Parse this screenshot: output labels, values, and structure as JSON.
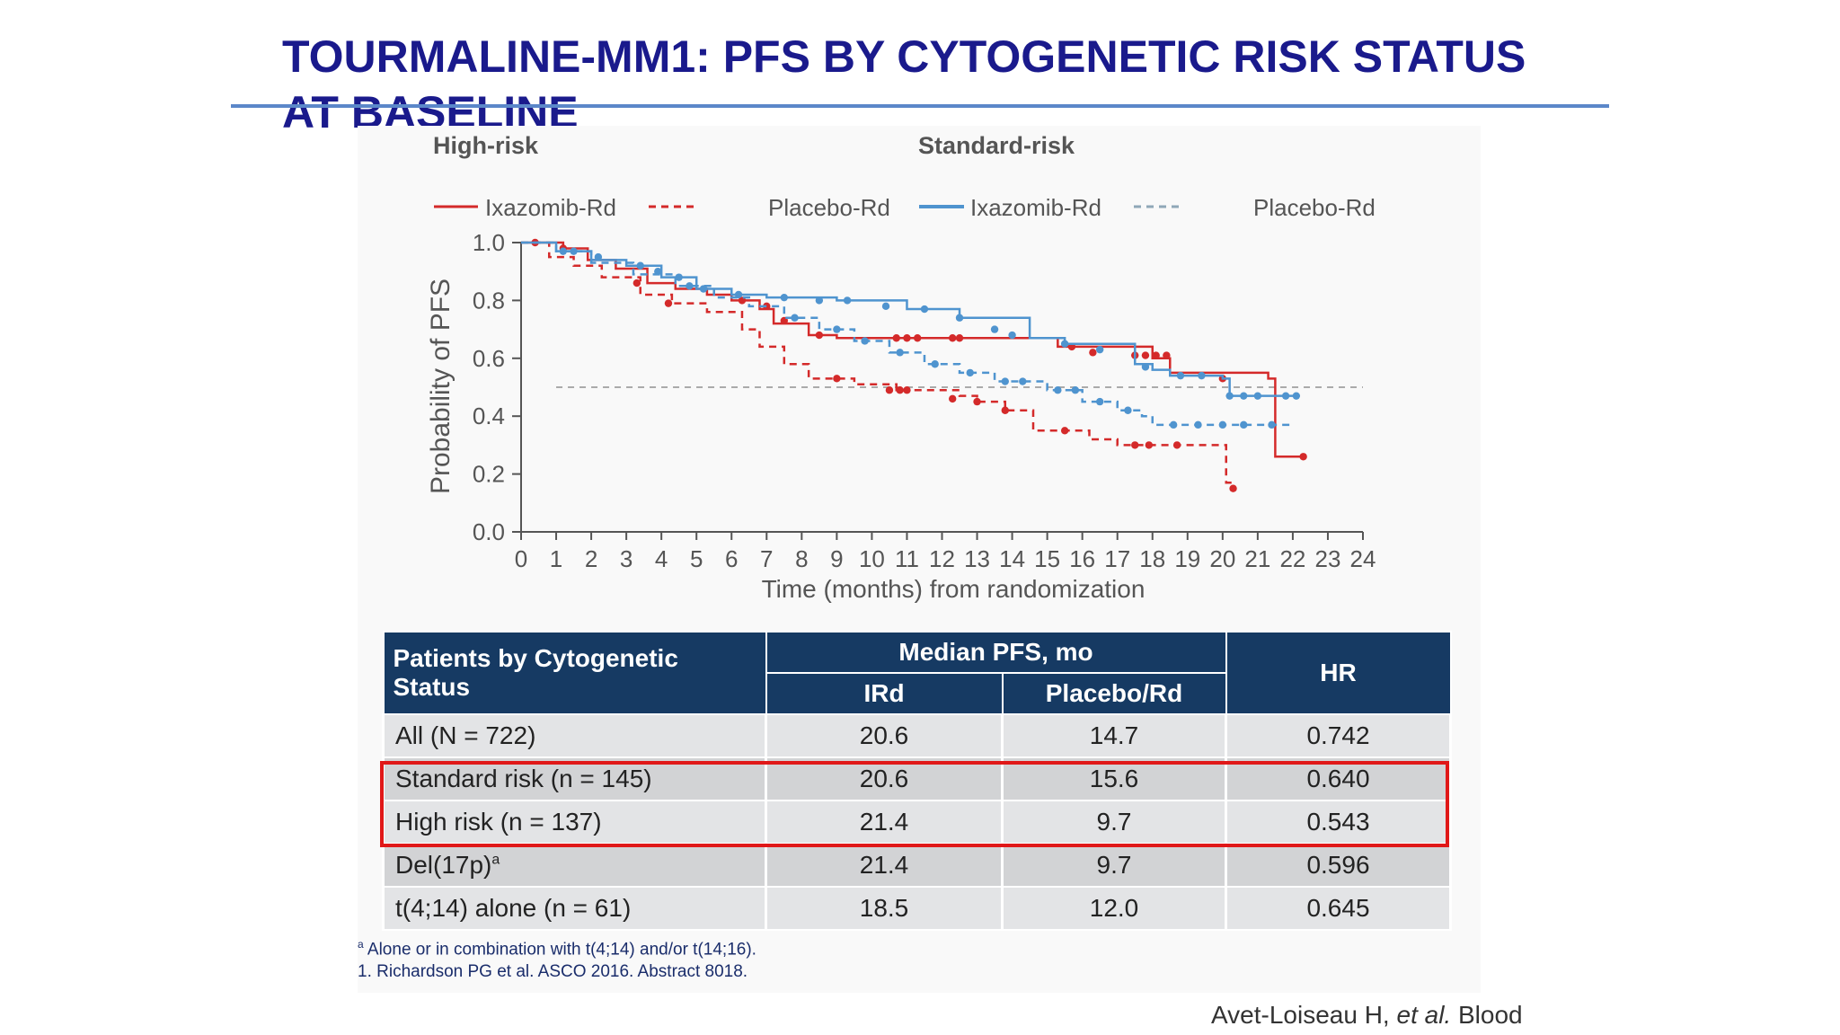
{
  "title": {
    "bold": "TOURMALINE-MM1",
    "rest": ": PFS BY CYTOGENETIC RISK STATUS AT BASELINE"
  },
  "colors": {
    "high_risk": "#d42a2a",
    "standard_risk": "#4f94cf",
    "median_line": "#aaaaaa",
    "table_header": "#163a63",
    "highlight": "#e01818"
  },
  "chart_data": {
    "type": "line",
    "subtitle_left": "High-risk",
    "subtitle_right": "Standard-risk",
    "xlabel": "Time (months) from randomization",
    "ylabel": "Probability of PFS",
    "xlim": [
      0,
      24
    ],
    "ylim": [
      0,
      1
    ],
    "xticks": [
      0,
      1,
      2,
      3,
      4,
      5,
      6,
      7,
      8,
      9,
      10,
      11,
      12,
      13,
      14,
      15,
      16,
      17,
      18,
      19,
      20,
      21,
      22,
      23,
      24
    ],
    "yticks": [
      "0.0",
      "0.2",
      "0.4",
      "0.6",
      "0.8",
      "1.0"
    ],
    "reference_line_y": 0.5,
    "legend": [
      {
        "label": "Ixazomib-Rd",
        "group": "High-risk",
        "style": "solid",
        "color": "#d42a2a"
      },
      {
        "label": "Placebo-Rd",
        "group": "High-risk",
        "style": "dashed",
        "color": "#d42a2a"
      },
      {
        "label": "Ixazomib-Rd",
        "group": "Standard-risk",
        "style": "solid",
        "color": "#4f94cf"
      },
      {
        "label": "Placebo-Rd",
        "group": "Standard-risk",
        "style": "dashed",
        "color": "#4f94cf"
      }
    ],
    "series": [
      {
        "name": "High-risk Ixazomib-Rd",
        "color": "#d42a2a",
        "dash": "",
        "steps": [
          [
            0,
            1.0
          ],
          [
            1.2,
            0.98
          ],
          [
            1.9,
            0.94
          ],
          [
            2.7,
            0.91
          ],
          [
            3.6,
            0.86
          ],
          [
            4.4,
            0.84
          ],
          [
            5.3,
            0.82
          ],
          [
            6.0,
            0.8
          ],
          [
            6.8,
            0.77
          ],
          [
            7.2,
            0.72
          ],
          [
            8.2,
            0.68
          ],
          [
            9.0,
            0.67
          ],
          [
            11.5,
            0.67
          ],
          [
            15.3,
            0.64
          ],
          [
            18.0,
            0.6
          ],
          [
            18.5,
            0.55
          ],
          [
            21.3,
            0.53
          ],
          [
            21.5,
            0.26
          ],
          [
            22.3,
            0.26
          ]
        ],
        "censor": [
          [
            0.4,
            1.0
          ],
          [
            1.2,
            0.98
          ],
          [
            3.3,
            0.86
          ],
          [
            6.3,
            0.8
          ],
          [
            7.0,
            0.78
          ],
          [
            7.5,
            0.73
          ],
          [
            8.5,
            0.68
          ],
          [
            10.7,
            0.67
          ],
          [
            11.0,
            0.67
          ],
          [
            11.3,
            0.67
          ],
          [
            12.3,
            0.67
          ],
          [
            12.5,
            0.67
          ],
          [
            15.7,
            0.64
          ],
          [
            16.3,
            0.62
          ],
          [
            17.5,
            0.61
          ],
          [
            17.8,
            0.61
          ],
          [
            18.1,
            0.61
          ],
          [
            18.4,
            0.61
          ],
          [
            20.0,
            0.53
          ],
          [
            22.3,
            0.26
          ]
        ]
      },
      {
        "name": "High-risk Placebo-Rd",
        "color": "#d42a2a",
        "dash": "8,6",
        "steps": [
          [
            0,
            1.0
          ],
          [
            0.8,
            0.95
          ],
          [
            1.5,
            0.92
          ],
          [
            2.3,
            0.88
          ],
          [
            3.4,
            0.82
          ],
          [
            4.3,
            0.79
          ],
          [
            5.3,
            0.76
          ],
          [
            6.3,
            0.7
          ],
          [
            6.8,
            0.64
          ],
          [
            7.5,
            0.58
          ],
          [
            8.2,
            0.53
          ],
          [
            9.5,
            0.51
          ],
          [
            10.7,
            0.49
          ],
          [
            12.5,
            0.47
          ],
          [
            13.0,
            0.45
          ],
          [
            13.8,
            0.42
          ],
          [
            14.6,
            0.35
          ],
          [
            16.2,
            0.32
          ],
          [
            17.0,
            0.3
          ],
          [
            20.0,
            0.3
          ],
          [
            20.1,
            0.17
          ],
          [
            20.3,
            0.15
          ]
        ],
        "censor": [
          [
            4.2,
            0.79
          ],
          [
            9.0,
            0.53
          ],
          [
            10.5,
            0.49
          ],
          [
            10.8,
            0.49
          ],
          [
            11.0,
            0.49
          ],
          [
            12.3,
            0.46
          ],
          [
            13.0,
            0.45
          ],
          [
            13.8,
            0.42
          ],
          [
            15.5,
            0.35
          ],
          [
            17.5,
            0.3
          ],
          [
            17.9,
            0.3
          ],
          [
            18.7,
            0.3
          ],
          [
            20.3,
            0.15
          ]
        ]
      },
      {
        "name": "Standard-risk Ixazomib-Rd",
        "color": "#4f94cf",
        "dash": "",
        "steps": [
          [
            0,
            1.0
          ],
          [
            1.0,
            0.97
          ],
          [
            2.0,
            0.94
          ],
          [
            3.0,
            0.92
          ],
          [
            4.0,
            0.88
          ],
          [
            5.0,
            0.84
          ],
          [
            6.0,
            0.82
          ],
          [
            7.0,
            0.81
          ],
          [
            9.0,
            0.8
          ],
          [
            11.0,
            0.77
          ],
          [
            12.5,
            0.74
          ],
          [
            14.5,
            0.67
          ],
          [
            15.5,
            0.65
          ],
          [
            17.5,
            0.58
          ],
          [
            18.0,
            0.56
          ],
          [
            18.5,
            0.54
          ],
          [
            20.0,
            0.53
          ],
          [
            20.2,
            0.47
          ],
          [
            22.2,
            0.47
          ]
        ],
        "censor": [
          [
            1.2,
            0.97
          ],
          [
            2.2,
            0.95
          ],
          [
            3.4,
            0.92
          ],
          [
            3.9,
            0.9
          ],
          [
            4.5,
            0.88
          ],
          [
            5.2,
            0.84
          ],
          [
            6.2,
            0.82
          ],
          [
            7.5,
            0.81
          ],
          [
            8.5,
            0.8
          ],
          [
            9.3,
            0.8
          ],
          [
            10.4,
            0.78
          ],
          [
            11.5,
            0.77
          ],
          [
            12.5,
            0.74
          ],
          [
            13.5,
            0.7
          ],
          [
            14.0,
            0.68
          ],
          [
            15.5,
            0.65
          ],
          [
            16.5,
            0.63
          ],
          [
            17.8,
            0.57
          ],
          [
            18.8,
            0.54
          ],
          [
            19.4,
            0.54
          ],
          [
            20.2,
            0.47
          ],
          [
            20.6,
            0.47
          ],
          [
            21.0,
            0.47
          ],
          [
            21.8,
            0.47
          ],
          [
            22.1,
            0.47
          ]
        ]
      },
      {
        "name": "Standard-risk Placebo-Rd",
        "color": "#4f94cf",
        "dash": "8,6",
        "steps": [
          [
            0,
            1.0
          ],
          [
            1.0,
            0.97
          ],
          [
            2.0,
            0.93
          ],
          [
            3.2,
            0.89
          ],
          [
            4.4,
            0.85
          ],
          [
            5.5,
            0.81
          ],
          [
            6.5,
            0.78
          ],
          [
            7.5,
            0.74
          ],
          [
            8.5,
            0.7
          ],
          [
            9.5,
            0.66
          ],
          [
            10.5,
            0.62
          ],
          [
            11.5,
            0.58
          ],
          [
            12.5,
            0.55
          ],
          [
            13.5,
            0.52
          ],
          [
            15.0,
            0.49
          ],
          [
            16.0,
            0.45
          ],
          [
            17.0,
            0.42
          ],
          [
            17.7,
            0.4
          ],
          [
            18.0,
            0.37
          ],
          [
            22.0,
            0.37
          ]
        ],
        "censor": [
          [
            1.5,
            0.97
          ],
          [
            4.8,
            0.85
          ],
          [
            7.8,
            0.74
          ],
          [
            9.0,
            0.7
          ],
          [
            9.8,
            0.66
          ],
          [
            10.8,
            0.62
          ],
          [
            11.8,
            0.58
          ],
          [
            12.8,
            0.55
          ],
          [
            13.8,
            0.52
          ],
          [
            14.3,
            0.52
          ],
          [
            15.3,
            0.49
          ],
          [
            15.8,
            0.49
          ],
          [
            16.5,
            0.45
          ],
          [
            17.3,
            0.42
          ],
          [
            18.6,
            0.37
          ],
          [
            19.3,
            0.37
          ],
          [
            20.0,
            0.37
          ],
          [
            20.6,
            0.37
          ],
          [
            21.4,
            0.37
          ]
        ]
      }
    ]
  },
  "table": {
    "header": {
      "patients": "Patients by Cytogenetic Status",
      "median": "Median PFS, mo",
      "ird": "IRd",
      "placebo": "Placebo/Rd",
      "hr": "HR"
    },
    "rows": [
      {
        "label": "All (N = 722)",
        "ird": "20.6",
        "placebo": "14.7",
        "hr": "0.742"
      },
      {
        "label": "Standard risk (n = 145)",
        "ird": "20.6",
        "placebo": "15.6",
        "hr": "0.640"
      },
      {
        "label": "High risk (n = 137)",
        "ird": "21.4",
        "placebo": "9.7",
        "hr": "0.543"
      },
      {
        "label": "Del(17p)",
        "label_sup": "a",
        "ird": "21.4",
        "placebo": "9.7",
        "hr": "0.596"
      },
      {
        "label": "t(4;14) alone (n = 61)",
        "ird": "18.5",
        "placebo": "12.0",
        "hr": "0.645"
      }
    ]
  },
  "footnotes": {
    "a_marker": "a",
    "a_text": " Alone or in combination with t(4;14) and/or t(14;16).",
    "ref1": "1. Richardson PG et al. ASCO 2016. Abstract 8018."
  },
  "citation": {
    "authors": "Avet-Loiseau H, ",
    "etal": "et al.",
    "journal": " Blood"
  }
}
